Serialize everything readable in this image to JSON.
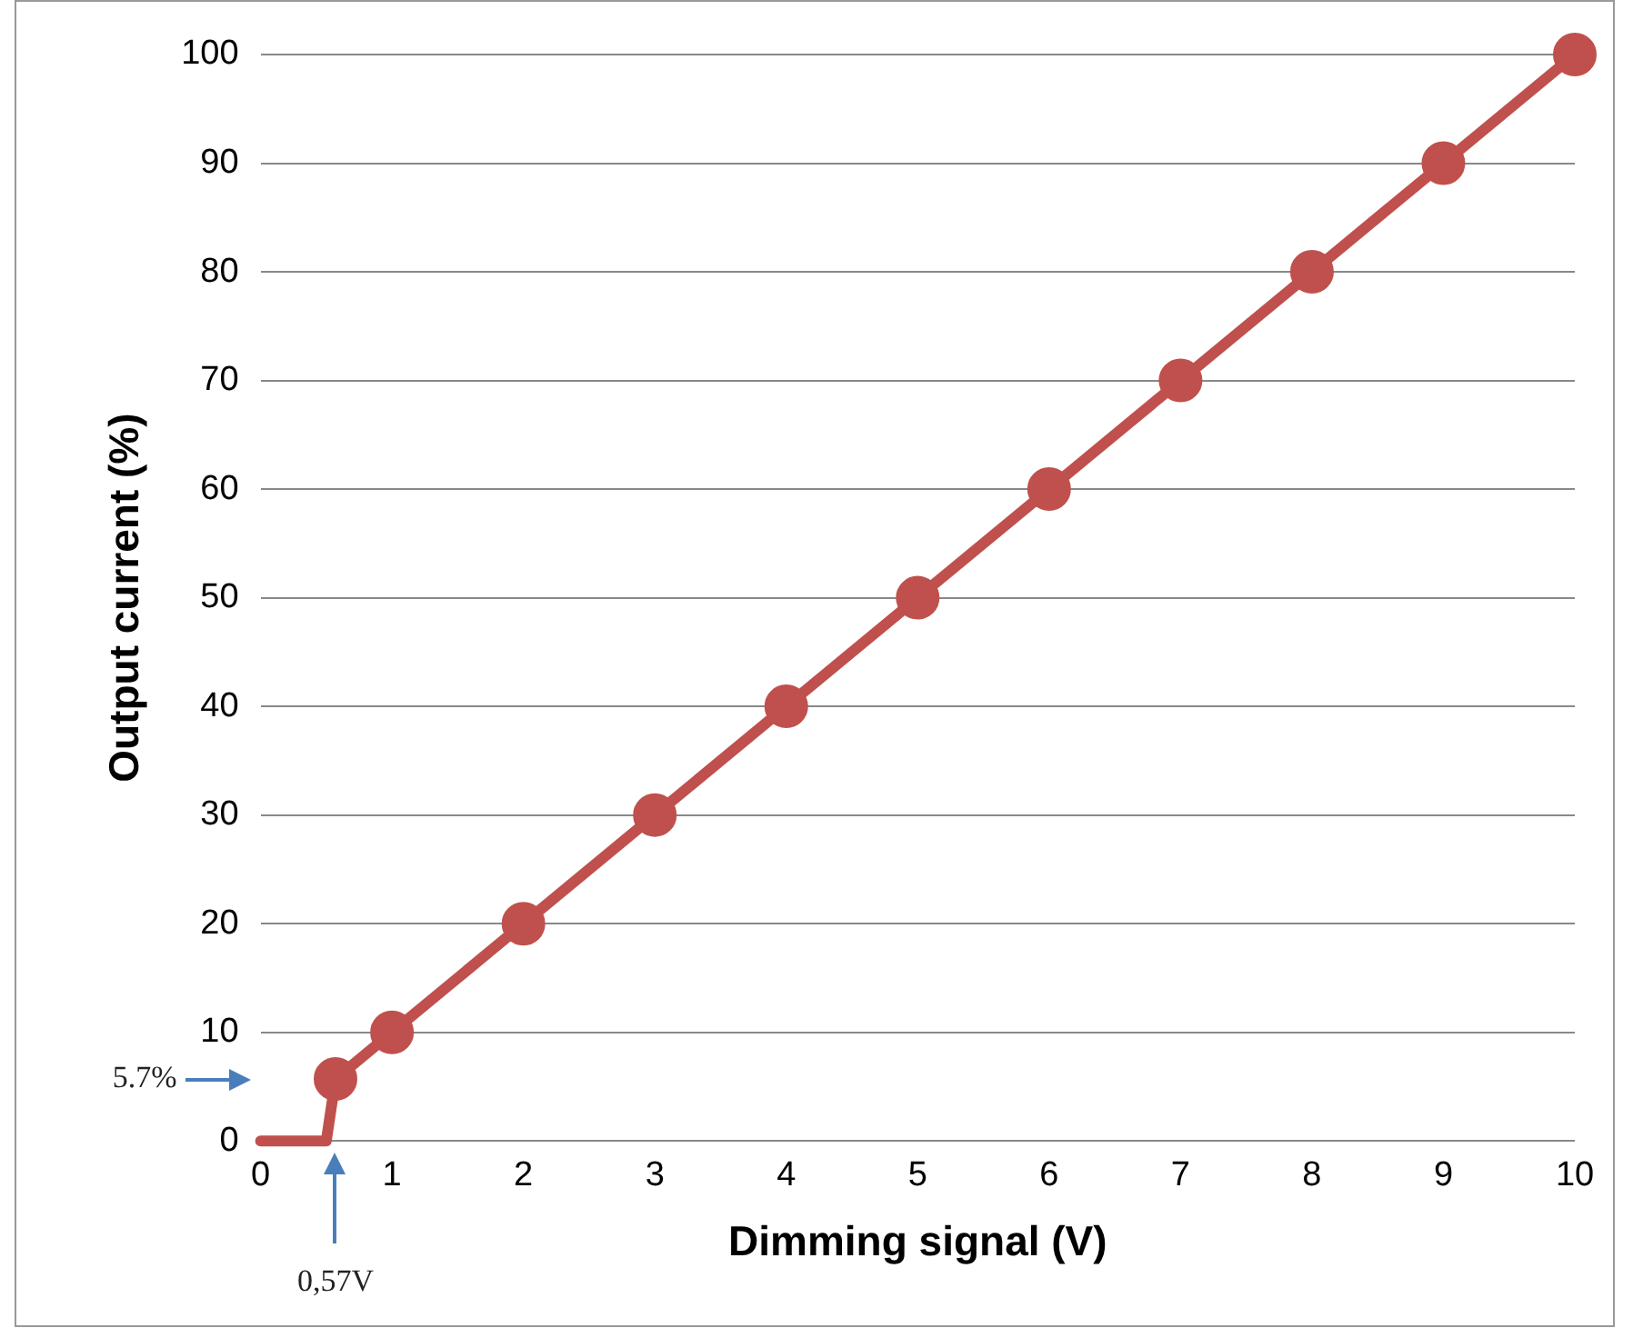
{
  "chart_data": {
    "type": "line",
    "xlabel": "Dimming signal (V)",
    "ylabel": "Output current (%)",
    "xlim": [
      0,
      10
    ],
    "xticks": [
      0,
      1,
      2,
      3,
      4,
      5,
      6,
      7,
      8,
      9,
      10
    ],
    "ylim": [
      0,
      100
    ],
    "yticks": [
      0,
      10,
      20,
      30,
      40,
      50,
      60,
      70,
      80,
      90,
      100
    ],
    "grid": "y",
    "legend": false,
    "line_style": "solid",
    "series": [
      {
        "x": [
          0,
          0.5,
          0.57
        ],
        "values": [
          0,
          0,
          5.7
        ],
        "color": "#c0504d",
        "marker": "none"
      },
      {
        "x": [
          0.57,
          1,
          2,
          3,
          4,
          5,
          6,
          7,
          8,
          9,
          10
        ],
        "values": [
          5.7,
          10,
          20,
          30,
          40,
          50,
          60,
          70,
          80,
          90,
          100
        ],
        "color": "#c0504d",
        "marker": "circle"
      }
    ],
    "annotations": [
      "5.7%",
      "0,57V"
    ]
  }
}
